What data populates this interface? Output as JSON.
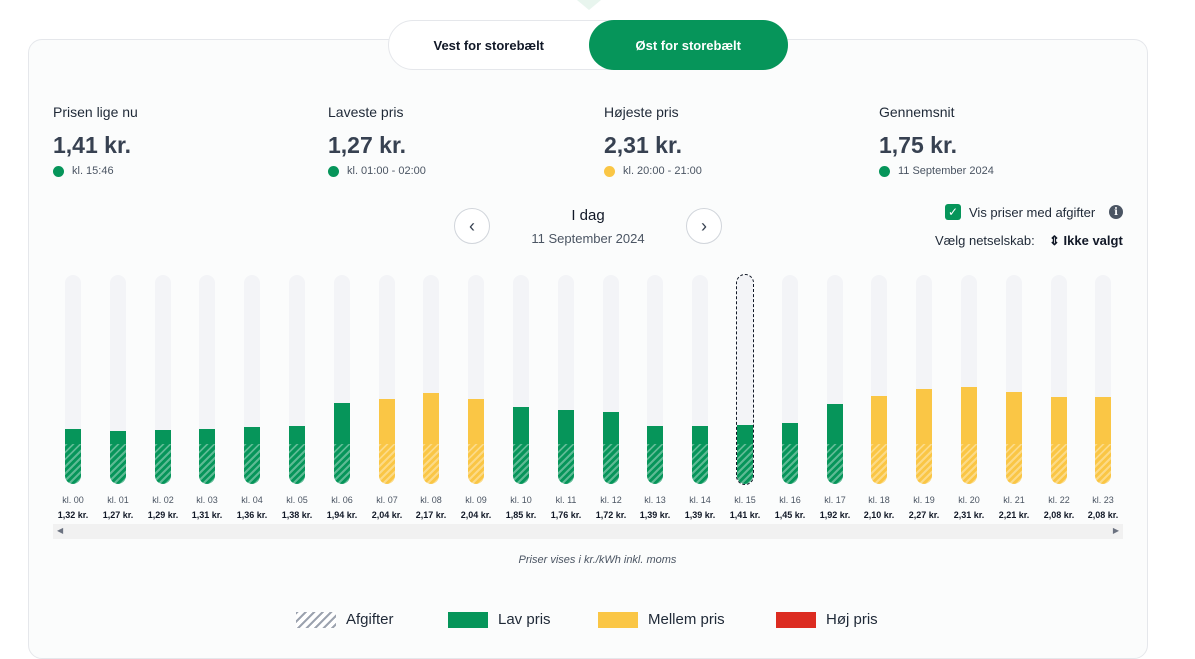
{
  "tabs": [
    {
      "label": "Vest for storebælt",
      "active": false
    },
    {
      "label": "Øst for storebælt",
      "active": true
    }
  ],
  "stats": [
    {
      "label": "Prisen lige nu",
      "value": "1,41 kr.",
      "sub": "kl. 15:46",
      "dot_color": "#06955a"
    },
    {
      "label": "Laveste pris",
      "value": "1,27 kr.",
      "sub": "kl. 01:00 - 02:00",
      "dot_color": "#06955a"
    },
    {
      "label": "Højeste pris",
      "value": "2,31 kr.",
      "sub": "kl. 20:00 - 21:00",
      "dot_color": "#fac645"
    },
    {
      "label": "Gennemsnit",
      "value": "1,75 kr.",
      "sub": "11 September 2024",
      "dot_color": "#06955a"
    }
  ],
  "day_nav": {
    "title": "I dag",
    "date": "11 September 2024",
    "prev_icon": "chevron-left-icon",
    "next_icon": "chevron-right-icon"
  },
  "options": {
    "show_tax_label": "Vis priser med afgifter",
    "show_tax_checked": true,
    "netco_label": "Vælg netselskab:",
    "netco_value": "Ikke valgt"
  },
  "colors": {
    "low": "#06955a",
    "mid": "#fac645",
    "high": "#dc2c21",
    "accent": "#06955a"
  },
  "chart_data": {
    "type": "bar",
    "categories": [
      "kl. 00",
      "kl. 01",
      "kl. 02",
      "kl. 03",
      "kl. 04",
      "kl. 05",
      "kl. 06",
      "kl. 07",
      "kl. 08",
      "kl. 09",
      "kl. 10",
      "kl. 11",
      "kl. 12",
      "kl. 13",
      "kl. 14",
      "kl. 15",
      "kl. 16",
      "kl. 17",
      "kl. 18",
      "kl. 19",
      "kl. 20",
      "kl. 21",
      "kl. 22",
      "kl. 23"
    ],
    "values": [
      1.32,
      1.27,
      1.29,
      1.31,
      1.36,
      1.38,
      1.94,
      2.04,
      2.17,
      2.04,
      1.85,
      1.76,
      1.72,
      1.39,
      1.39,
      1.41,
      1.45,
      1.92,
      2.1,
      2.27,
      2.31,
      2.21,
      2.08,
      2.08
    ],
    "value_labels": [
      "1,32 kr.",
      "1,27 kr.",
      "1,29 kr.",
      "1,31 kr.",
      "1,36 kr.",
      "1,38 kr.",
      "1,94 kr.",
      "2,04 kr.",
      "2,17 kr.",
      "2,04 kr.",
      "1,85 kr.",
      "1,76 kr.",
      "1,72 kr.",
      "1,39 kr.",
      "1,39 kr.",
      "1,41 kr.",
      "1,45 kr.",
      "1,92 kr.",
      "2,10 kr.",
      "2,27 kr.",
      "2,31 kr.",
      "2,21 kr.",
      "2,08 kr.",
      "2,08 kr."
    ],
    "level": [
      "low",
      "low",
      "low",
      "low",
      "low",
      "low",
      "low",
      "mid",
      "mid",
      "mid",
      "low",
      "low",
      "low",
      "low",
      "low",
      "low",
      "low",
      "low",
      "mid",
      "mid",
      "mid",
      "mid",
      "mid",
      "mid"
    ],
    "selected_index": 15,
    "tax_portion": 0.96,
    "ylim": [
      0,
      5
    ]
  },
  "note": "Priser vises i kr./kWh inkl. moms",
  "legend": [
    {
      "label": "Afgifter",
      "kind": "hatch"
    },
    {
      "label": "Lav pris",
      "kind": "low"
    },
    {
      "label": "Mellem pris",
      "kind": "mid"
    },
    {
      "label": "Høj pris",
      "kind": "high"
    }
  ]
}
